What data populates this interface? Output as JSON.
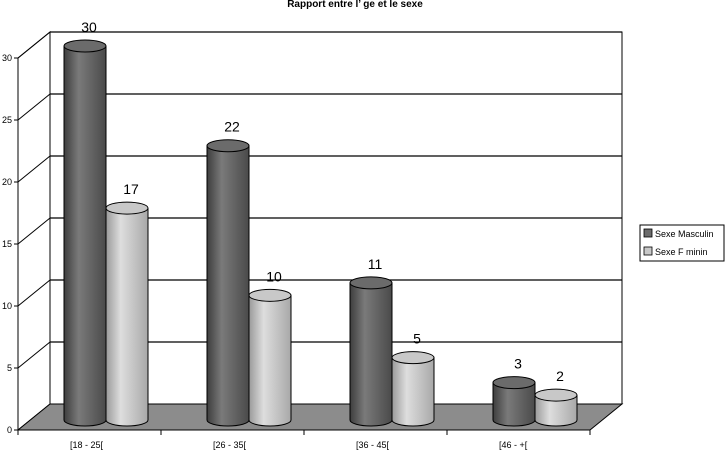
{
  "chart_data": {
    "type": "bar",
    "style": "3d-cylinder",
    "title": "Rapport entre l’ ge et le sexe",
    "xlabel": "",
    "ylabel": "",
    "ylim": [
      0,
      30
    ],
    "yticks": [
      0,
      5,
      10,
      15,
      20,
      25,
      30
    ],
    "grid": true,
    "legend_position": "right",
    "categories": [
      "[18 - 25[",
      "[26 - 35[",
      "[36 - 45[",
      "[46 - +["
    ],
    "series": [
      {
        "name": "Sexe Masculin",
        "values": [
          30,
          22,
          11,
          3
        ],
        "color": "#6b6b6b"
      },
      {
        "name": "Sexe F  minin",
        "values": [
          17,
          10,
          5,
          2
        ],
        "color": "#c8c8c8"
      }
    ],
    "floor_color": "#8c8c8c",
    "data_labels": true
  }
}
